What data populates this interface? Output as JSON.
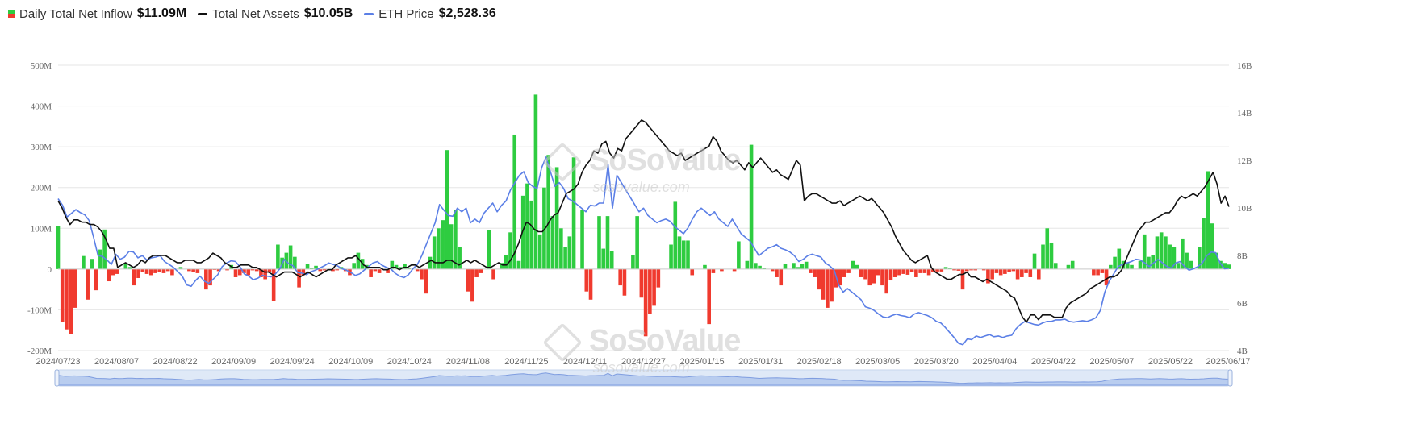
{
  "legend": {
    "inflow_label": "Daily Total Net Inflow",
    "inflow_value": "$11.09M",
    "assets_label": "Total Net Assets",
    "assets_value": "$10.05B",
    "price_label": "ETH Price",
    "price_value": "$2,528.36"
  },
  "watermark": {
    "brand": "SoSoValue",
    "site": "sosovalue.com"
  },
  "colors": {
    "positive": "#2ecc40",
    "negative": "#f03a2e",
    "assets": "#111111",
    "price": "#5b7fe6",
    "grid": "#e6e6e6",
    "axis_text": "#666666",
    "navigator": "#dfe9f7"
  },
  "chart_data": {
    "type": "bar",
    "title": "",
    "x_tick_labels": [
      "2024/07/23",
      "2024/08/07",
      "2024/08/22",
      "2024/09/09",
      "2024/09/24",
      "2024/10/09",
      "2024/10/24",
      "2024/11/08",
      "2024/11/25",
      "2024/12/11",
      "2024/12/27",
      "2025/01/15",
      "2025/01/31",
      "2025/02/18",
      "2025/03/05",
      "2025/03/20",
      "2025/04/04",
      "2025/04/22",
      "2025/05/07",
      "2025/05/22",
      "2025/06/17"
    ],
    "y_left": {
      "label": "",
      "ticks": [
        "500M",
        "400M",
        "300M",
        "200M",
        "100M",
        "0",
        "-100M",
        "-200M"
      ],
      "range": [
        -200,
        500
      ],
      "unit": "M"
    },
    "y_right": {
      "label": "",
      "ticks": [
        "16B",
        "14B",
        "12B",
        "10B",
        "8B",
        "6B",
        "4B"
      ],
      "range": [
        4,
        16
      ],
      "unit": "B"
    },
    "series": [
      {
        "name": "Daily Total Net Inflow",
        "kind": "bar",
        "axis": "left",
        "unit": "M USD",
        "values": [
          106,
          -130,
          -148,
          -160,
          -95,
          0,
          32,
          -75,
          25,
          -52,
          48,
          97,
          -30,
          -15,
          -12,
          0,
          15,
          5,
          -40,
          -22,
          -8,
          -12,
          -15,
          -10,
          -8,
          -10,
          -5,
          -15,
          0,
          5,
          0,
          -5,
          -8,
          -10,
          0,
          -50,
          -40,
          -2,
          -5,
          0,
          -3,
          10,
          -20,
          -15,
          -10,
          -15,
          -3,
          -5,
          -20,
          -25,
          -8,
          -78,
          60,
          28,
          40,
          58,
          30,
          -45,
          -15,
          12,
          2,
          8,
          -5,
          -3,
          0,
          -5,
          -3,
          5,
          -5,
          -15,
          15,
          40,
          25,
          10,
          -20,
          -5,
          -10,
          -2,
          -10,
          20,
          10,
          5,
          12,
          3,
          0,
          -5,
          -25,
          -60,
          30,
          80,
          100,
          120,
          292,
          110,
          145,
          55,
          0,
          -55,
          -80,
          -20,
          -10,
          0,
          95,
          -25,
          0,
          15,
          35,
          90,
          330,
          20,
          180,
          210,
          168,
          428,
          85,
          200,
          280,
          130,
          250,
          100,
          55,
          80,
          274,
          0,
          145,
          -55,
          -75,
          0,
          130,
          50,
          130,
          45,
          0,
          -40,
          -65,
          0,
          35,
          130,
          -70,
          -165,
          -110,
          -90,
          -45,
          0,
          0,
          60,
          165,
          80,
          70,
          70,
          -15,
          0,
          0,
          10,
          -135,
          -10,
          0,
          -5,
          0,
          0,
          -5,
          68,
          0,
          20,
          305,
          15,
          8,
          3,
          0,
          -5,
          -20,
          -40,
          12,
          0,
          15,
          5,
          12,
          18,
          -10,
          -20,
          -50,
          -75,
          -95,
          -80,
          -45,
          -40,
          -20,
          -10,
          20,
          10,
          -20,
          -25,
          -40,
          -35,
          -15,
          -40,
          -60,
          -28,
          -20,
          -15,
          -12,
          -14,
          -8,
          -20,
          -10,
          -10,
          -15,
          -8,
          -6,
          -6,
          5,
          3,
          -3,
          -4,
          -50,
          -5,
          -3,
          -3,
          0,
          -3,
          -35,
          -25,
          -10,
          -15,
          -12,
          -8,
          -5,
          -25,
          -20,
          -10,
          -20,
          38,
          -25,
          60,
          100,
          65,
          15,
          0,
          0,
          10,
          20,
          0,
          0,
          0,
          0,
          -15,
          -15,
          -10,
          -40,
          10,
          30,
          50,
          20,
          15,
          10,
          0,
          20,
          85,
          30,
          35,
          80,
          90,
          80,
          60,
          55,
          15,
          75,
          40,
          20,
          0,
          55,
          125,
          240,
          112,
          40,
          20,
          15,
          11.09
        ]
      },
      {
        "name": "Total Net Assets",
        "kind": "line",
        "axis": "right",
        "unit": "B USD",
        "values": [
          10.3,
          10.0,
          9.6,
          9.3,
          9.5,
          9.5,
          9.4,
          9.4,
          9.3,
          9.3,
          9.2,
          9.0,
          8.7,
          8.3,
          8.3,
          7.5,
          7.6,
          7.7,
          7.6,
          7.5,
          7.6,
          7.8,
          7.7,
          7.9,
          8.0,
          8.0,
          8.0,
          8.0,
          7.9,
          7.8,
          7.7,
          7.7,
          7.8,
          7.8,
          7.8,
          7.7,
          7.7,
          7.8,
          7.9,
          8.1,
          8.0,
          7.9,
          7.7,
          7.6,
          7.5,
          7.5,
          7.6,
          7.6,
          7.6,
          7.5,
          7.5,
          7.4,
          7.3,
          7.3,
          7.2,
          7.1,
          7.2,
          7.3,
          7.3,
          7.3,
          7.2,
          7.1,
          7.2,
          7.3,
          7.2,
          7.1,
          7.2,
          7.3,
          7.4,
          7.4,
          7.6,
          7.7,
          7.8,
          7.9,
          7.9,
          8.0,
          7.8,
          7.6,
          7.5,
          7.5,
          7.5,
          7.5,
          7.4,
          7.4,
          7.5,
          7.5,
          7.4,
          7.5,
          7.5,
          7.6,
          7.6,
          7.5,
          7.6,
          7.7,
          7.8,
          7.7,
          7.7,
          7.7,
          7.8,
          7.8,
          7.7,
          7.6,
          7.7,
          7.8,
          7.7,
          7.8,
          7.7,
          7.6,
          7.5,
          7.5,
          7.6,
          7.7,
          7.6,
          7.6,
          7.8,
          8.1,
          8.5,
          9.0,
          9.4,
          9.3,
          9.1,
          9.0,
          9.0,
          9.2,
          9.5,
          9.7,
          9.8,
          10.2,
          10.6,
          10.7,
          10.8,
          11.0,
          11.5,
          11.8,
          12.0,
          12.4,
          12.3,
          12.7,
          12.8,
          12.3,
          12.1,
          12.5,
          12.4,
          12.9,
          13.1,
          13.3,
          13.5,
          13.7,
          13.6,
          13.4,
          13.2,
          13.0,
          12.8,
          12.6,
          12.4,
          12.3,
          12.2,
          12.3,
          12.0,
          12.1,
          12.2,
          12.3,
          12.4,
          12.5,
          12.6,
          13.0,
          12.8,
          12.4,
          12.2,
          12.0,
          11.9,
          12.0,
          11.8,
          11.6,
          11.9,
          11.7,
          11.9,
          12.1,
          11.9,
          11.7,
          11.5,
          11.6,
          11.4,
          11.3,
          11.2,
          11.6,
          12.0,
          11.8,
          10.3,
          10.5,
          10.6,
          10.6,
          10.5,
          10.4,
          10.3,
          10.2,
          10.2,
          10.3,
          10.1,
          10.2,
          10.3,
          10.4,
          10.5,
          10.4,
          10.3,
          10.4,
          10.2,
          10.0,
          9.8,
          9.5,
          9.2,
          8.8,
          8.5,
          8.2,
          8.0,
          7.8,
          7.7,
          7.8,
          7.9,
          8.0,
          7.5,
          7.3,
          7.2,
          7.1,
          7.0,
          7.0,
          7.1,
          7.2,
          7.2,
          7.3,
          7.1,
          7.1,
          7.0,
          6.9,
          7.0,
          6.9,
          6.8,
          6.7,
          6.6,
          6.5,
          6.3,
          6.2,
          5.8,
          5.4,
          5.2,
          5.5,
          5.5,
          5.3,
          5.5,
          5.5,
          5.5,
          5.4,
          5.4,
          5.4,
          5.8,
          6.0,
          6.1,
          6.2,
          6.3,
          6.4,
          6.6,
          6.7,
          6.8,
          6.9,
          7.0,
          7.1,
          7.1,
          7.2,
          7.4,
          7.8,
          8.2,
          8.6,
          9.0,
          9.2,
          9.4,
          9.4,
          9.5,
          9.6,
          9.7,
          9.8,
          9.8,
          10.0,
          10.3,
          10.5,
          10.4,
          10.5,
          10.6,
          10.5,
          10.7,
          10.9,
          11.2,
          11.5,
          11.0,
          10.2,
          10.5,
          10.05
        ]
      },
      {
        "name": "ETH Price",
        "kind": "line",
        "axis": "right",
        "unit": "USD",
        "values": [
          3480,
          3390,
          3230,
          3280,
          3330,
          3290,
          3260,
          3180,
          2950,
          2700,
          2690,
          2640,
          2580,
          2720,
          2650,
          2680,
          2760,
          2750,
          2670,
          2700,
          2640,
          2670,
          2680,
          2700,
          2620,
          2580,
          2540,
          2480,
          2420,
          2300,
          2280,
          2360,
          2420,
          2350,
          2320,
          2380,
          2440,
          2550,
          2600,
          2630,
          2620,
          2550,
          2450,
          2420,
          2370,
          2390,
          2430,
          2420,
          2410,
          2450,
          2520,
          2650,
          2590,
          2560,
          2470,
          2460,
          2440,
          2480,
          2500,
          2530,
          2560,
          2600,
          2580,
          2560,
          2520,
          2500,
          2470,
          2430,
          2450,
          2500,
          2550,
          2600,
          2620,
          2570,
          2540,
          2520,
          2460,
          2420,
          2400,
          2440,
          2520,
          2580,
          2700,
          2850,
          3000,
          3150,
          3400,
          3320,
          3250,
          3240,
          3350,
          3300,
          3350,
          3150,
          3200,
          3150,
          3280,
          3350,
          3420,
          3300,
          3390,
          3450,
          3600,
          3700,
          3800,
          3850,
          3700,
          3650,
          3620,
          3900,
          4050,
          3850,
          3650,
          3700,
          3620,
          3480,
          3450,
          3400,
          3350,
          3300,
          3390,
          3380,
          3420,
          3420,
          3950,
          3350,
          3800,
          3700,
          3600,
          3500,
          3400,
          3300,
          3350,
          3250,
          3200,
          3150,
          3180,
          3200,
          3170,
          3100,
          3050,
          3000,
          3080,
          3200,
          3300,
          3350,
          3300,
          3250,
          3300,
          3200,
          3150,
          3100,
          3200,
          3100,
          3000,
          2950,
          2900,
          2800,
          2700,
          2750,
          2800,
          2820,
          2850,
          2800,
          2780,
          2750,
          2700,
          2620,
          2650,
          2700,
          2720,
          2700,
          2680,
          2600,
          2560,
          2500,
          2300,
          2200,
          2250,
          2200,
          2150,
          2100,
          2000,
          1980,
          1950,
          1900,
          1860,
          1850,
          1880,
          1900,
          1880,
          1870,
          1850,
          1900,
          1920,
          1900,
          1880,
          1850,
          1800,
          1780,
          1720,
          1650,
          1580,
          1500,
          1480,
          1560,
          1550,
          1600,
          1580,
          1600,
          1620,
          1590,
          1600,
          1580,
          1600,
          1610,
          1700,
          1760,
          1800,
          1780,
          1760,
          1750,
          1780,
          1800,
          1800,
          1820,
          1820,
          1830,
          1800,
          1790,
          1800,
          1810,
          1800,
          1820,
          1850,
          1950,
          2200,
          2350,
          2450,
          2550,
          2580,
          2600,
          2620,
          2650,
          2640,
          2600,
          2550,
          2600,
          2650,
          2600,
          2550,
          2530,
          2600,
          2620,
          2550,
          2500,
          2520,
          2550,
          2600,
          2700,
          2750,
          2740,
          2600,
          2520,
          2528.36
        ]
      }
    ],
    "legend_position": "top-left",
    "grid": true
  }
}
